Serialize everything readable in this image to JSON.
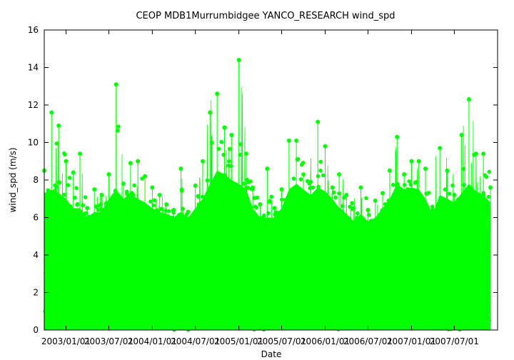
{
  "chart_data": {
    "type": "line",
    "title": "CEOP MDB1Murrumbidgee YANCO_RESEARCH  wind_spd",
    "xlabel": "Date",
    "ylabel": "wind_spd (m/s)",
    "ylim": [
      0,
      16
    ],
    "y_ticks": [
      "0",
      "2",
      "4",
      "6",
      "8",
      "10",
      "12",
      "14",
      "16"
    ],
    "x_ticks": [
      "2003/01/01",
      "2003/07/01",
      "2004/01/01",
      "2004/07/01",
      "2005/01/01",
      "2005/07/01",
      "2006/01/01",
      "2006/07/01",
      "2007/01/01",
      "2007/07/01"
    ],
    "x_tick_labels": [
      "2003/01/01",
      "2003/07/01",
      "2004/01/01",
      "2004/07/01",
      "2005/01/01",
      "2005/07/01",
      "2006/01/01",
      "2006/07/01",
      "2007/01/01",
      "2007/07/01"
    ],
    "xlim": [
      "2002/10/01",
      "2007/12/31"
    ],
    "grid": false,
    "series_color": "#00ff00",
    "envelope": {
      "x": [
        "2002/10/01",
        "2002/11/01",
        "2002/12/01",
        "2003/01/01",
        "2003/02/01",
        "2003/03/01",
        "2003/04/01",
        "2003/05/01",
        "2003/06/01",
        "2003/07/01",
        "2003/08/01",
        "2003/09/01",
        "2003/10/01",
        "2003/11/01",
        "2003/12/01",
        "2004/01/01",
        "2004/02/01",
        "2004/03/01",
        "2004/04/01",
        "2004/05/01",
        "2004/06/01",
        "2004/07/01",
        "2004/08/01",
        "2004/09/01",
        "2004/10/01",
        "2004/11/01",
        "2004/12/01",
        "2005/01/01",
        "2005/02/01",
        "2005/03/01",
        "2005/04/01",
        "2005/05/01",
        "2005/06/01",
        "2005/07/01",
        "2005/08/01",
        "2005/09/01",
        "2005/10/01",
        "2005/11/01",
        "2005/12/01",
        "2006/01/01",
        "2006/02/01",
        "2006/03/01",
        "2006/04/01",
        "2006/05/01",
        "2006/06/01",
        "2006/07/01",
        "2006/08/01",
        "2006/09/01",
        "2006/10/01",
        "2006/11/01",
        "2006/12/01",
        "2007/01/01",
        "2007/02/01",
        "2007/03/01",
        "2007/04/01",
        "2007/05/01",
        "2007/06/01",
        "2007/07/01",
        "2007/08/01",
        "2007/09/01",
        "2007/10/01",
        "2007/11/01",
        "2007/12/01"
      ],
      "y_max": [
        8.5,
        11.6,
        10.9,
        9.0,
        8.4,
        9.4,
        6.5,
        7.5,
        7.2,
        8.3,
        13.1,
        7.8,
        8.9,
        9.0,
        8.2,
        7.6,
        7.2,
        6.7,
        6.4,
        8.6,
        6.3,
        7.7,
        9.0,
        11.6,
        12.6,
        10.8,
        10.4,
        14.4,
        9.4,
        7.6,
        6.7,
        8.6,
        6.5,
        7.5,
        10.1,
        10.1,
        8.3,
        7.9,
        11.1,
        9.8,
        7.6,
        8.3,
        7.2,
        6.5,
        7.6,
        6.4,
        6.9,
        7.3,
        8.5,
        10.3,
        8.3,
        9.0,
        9.0,
        8.6,
        6.4,
        9.7,
        8.5,
        7.2,
        10.4,
        12.3,
        9.4,
        9.4,
        7.6
      ],
      "y_min": [
        0,
        0,
        0,
        0,
        0,
        0,
        0,
        0,
        0,
        0,
        0,
        0,
        0,
        0,
        0,
        0,
        0,
        0,
        0,
        0,
        0,
        0,
        0,
        0,
        0,
        0,
        0,
        0,
        0,
        0,
        0,
        0,
        0,
        0,
        0,
        0,
        0,
        0,
        0,
        0,
        0,
        0,
        0,
        0,
        0,
        0,
        0,
        0,
        0,
        0,
        0,
        0,
        0,
        0,
        0,
        0,
        0,
        0,
        0,
        0,
        0,
        0,
        0
      ],
      "y_typical_high": [
        7.3,
        7.5,
        7.3,
        7.0,
        6.5,
        6.5,
        6.0,
        6.3,
        6.3,
        7.0,
        7.5,
        7.0,
        7.2,
        7.0,
        6.8,
        6.5,
        6.3,
        6.2,
        6.0,
        6.3,
        6.0,
        6.5,
        7.0,
        7.8,
        8.5,
        8.3,
        8.0,
        7.8,
        7.5,
        6.5,
        6.0,
        6.0,
        6.0,
        6.5,
        7.5,
        7.8,
        7.5,
        7.2,
        7.6,
        7.4,
        7.0,
        6.5,
        6.2,
        5.8,
        6.2,
        5.8,
        6.0,
        6.5,
        7.0,
        7.8,
        7.5,
        7.6,
        7.5,
        7.0,
        6.2,
        7.2,
        7.0,
        6.8,
        7.3,
        7.8,
        7.4,
        7.2,
        6.8
      ]
    }
  }
}
